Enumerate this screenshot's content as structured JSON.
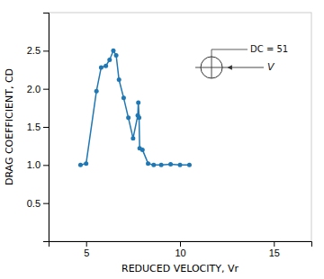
{
  "chart_data": {
    "type": "line",
    "x": [
      4.7,
      5.0,
      5.55,
      5.8,
      6.05,
      6.25,
      6.45,
      6.6,
      6.75,
      7.0,
      7.25,
      7.5,
      7.75,
      7.78,
      7.82,
      7.85,
      8.0,
      8.3,
      8.6,
      9.0,
      9.5,
      10.0,
      10.5
    ],
    "values": [
      1.0,
      1.02,
      1.97,
      2.28,
      2.3,
      2.38,
      2.5,
      2.44,
      2.12,
      1.88,
      1.62,
      1.35,
      1.65,
      1.82,
      1.62,
      1.22,
      1.2,
      1.02,
      1.0,
      1.0,
      1.01,
      1.0,
      1.0
    ],
    "marker": "circle",
    "line_style": "solid",
    "xlabel": "REDUCED VELOCITY, Vr",
    "ylabel": "DRAG COEFFICIENT, CD",
    "xlim": [
      3,
      17
    ],
    "ylim": [
      0,
      3.0
    ],
    "xticks": [
      5,
      10,
      15
    ],
    "yticks": [
      0.5,
      {
        "value": 1.0,
        "label": "1.0"
      },
      1.5,
      {
        "value": 2.0,
        "label": "2.0"
      },
      2.5
    ],
    "grid": false,
    "annotations": [
      "DC = 51",
      "V"
    ]
  }
}
